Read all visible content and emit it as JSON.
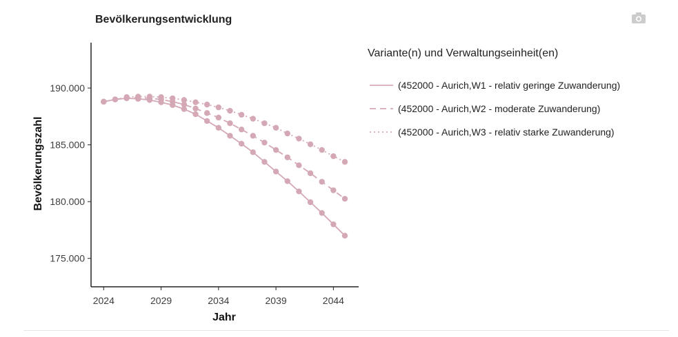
{
  "chart_data": {
    "type": "line",
    "title": "Bevölkerungsentwicklung",
    "xlabel": "Jahr",
    "ylabel": "Bevölkerungszahl",
    "x": [
      2024,
      2025,
      2026,
      2027,
      2028,
      2029,
      2030,
      2031,
      2032,
      2033,
      2034,
      2035,
      2036,
      2037,
      2038,
      2039,
      2040,
      2041,
      2042,
      2043,
      2044,
      2045
    ],
    "xlim": [
      2022.9,
      2046.2
    ],
    "ylim": [
      172500,
      194000
    ],
    "xticks": [
      2024,
      2029,
      2034,
      2039,
      2044
    ],
    "xtick_labels": [
      "2024",
      "2029",
      "2034",
      "2039",
      "2044"
    ],
    "yticks": [
      175000,
      180000,
      185000,
      190000
    ],
    "ytick_labels": [
      "175.000",
      "180.000",
      "185.000",
      "190.000"
    ],
    "legend_title": "Variante(n) und Verwaltungseinheit(en)",
    "legend_position": "right",
    "grid": false,
    "series": [
      {
        "name": "(452000 - Aurich,W1 - relativ geringe Zuwanderung)",
        "dash": "solid",
        "color": "#d4a9b5",
        "values": [
          188800,
          189000,
          189100,
          189050,
          188950,
          188750,
          188500,
          188150,
          187700,
          187100,
          186500,
          185800,
          185100,
          184350,
          183500,
          182650,
          181800,
          180900,
          179950,
          179000,
          178000,
          177000
        ]
      },
      {
        "name": "(452000 - Aurich,W2 - moderate Zuwanderung)",
        "dash": "dashed",
        "color": "#d4a9b5",
        "values": [
          188800,
          189000,
          189150,
          189150,
          189100,
          189000,
          188800,
          188550,
          188200,
          187800,
          187400,
          186900,
          186350,
          185800,
          185200,
          184550,
          183900,
          183200,
          182500,
          181750,
          181000,
          180250
        ]
      },
      {
        "name": "(452000 - Aurich,W3 - relativ starke Zuwanderung)",
        "dash": "dotted",
        "color": "#d4a9b5",
        "values": [
          188800,
          189000,
          189200,
          189250,
          189250,
          189200,
          189100,
          188950,
          188750,
          188550,
          188300,
          188000,
          187650,
          187300,
          186900,
          186500,
          186000,
          185550,
          185050,
          184550,
          184000,
          183500
        ]
      }
    ]
  },
  "colors": {
    "series": "#d4a9b5",
    "axis": "#222222",
    "icon": "#cccccc"
  },
  "toolbar": {
    "icon": "camera-icon"
  }
}
